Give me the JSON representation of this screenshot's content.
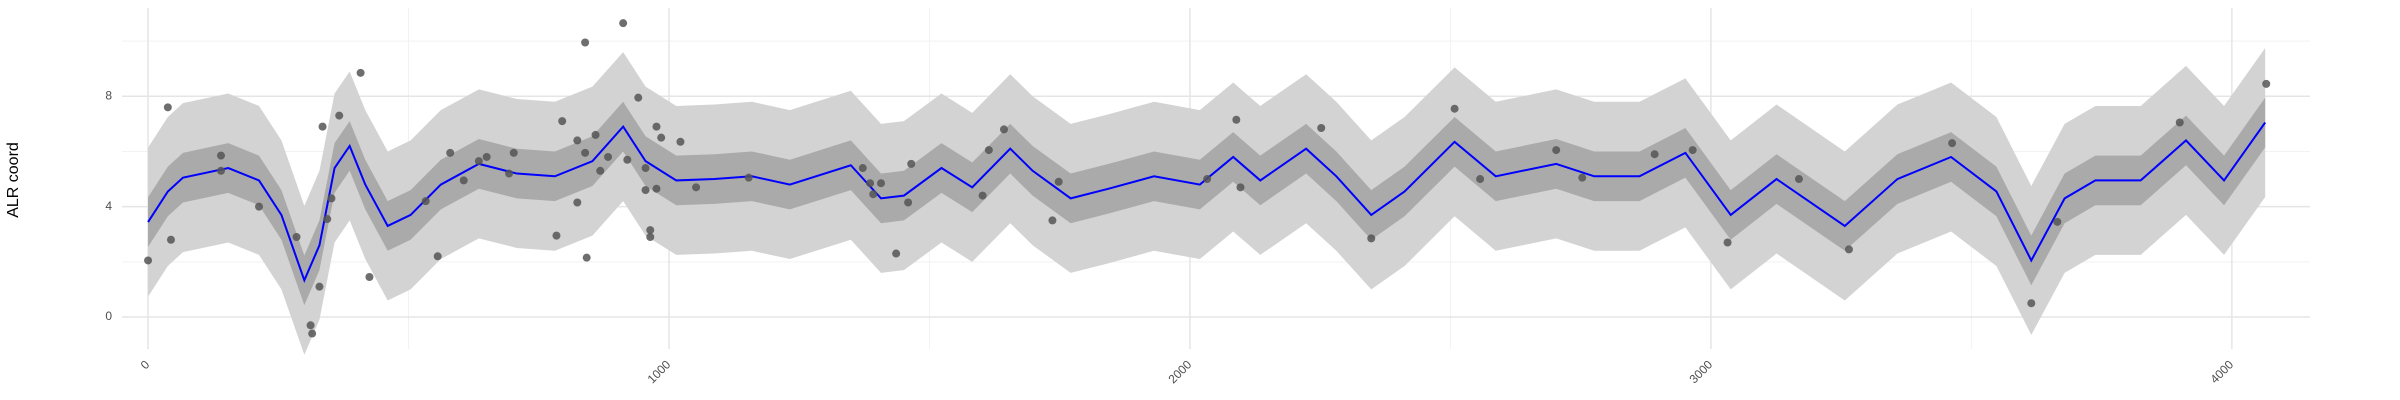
{
  "chart_data": {
    "type": "line",
    "y_label": "ALR coord",
    "xlim": [
      -50,
      4150
    ],
    "ylim": [
      -1.16,
      11.2
    ],
    "xticks": [
      0,
      1000,
      2000,
      3000,
      4000
    ],
    "yticks": [
      0,
      4,
      8
    ],
    "x_minor_ticks": [
      500,
      1500,
      2500,
      3500
    ],
    "y_minor_ticks": [
      2,
      6,
      10
    ],
    "grid": true,
    "x": [
      0,
      38,
      67,
      154,
      213,
      256,
      300,
      329,
      358,
      387,
      417,
      460,
      504,
      562,
      635,
      708,
      781,
      853,
      912,
      955,
      1014,
      1087,
      1159,
      1232,
      1349,
      1407,
      1451,
      1523,
      1582,
      1655,
      1698,
      1771,
      1844,
      1931,
      2019,
      2083,
      2135,
      2223,
      2281,
      2348,
      2412,
      2508,
      2587,
      2703,
      2776,
      2863,
      2951,
      3038,
      3126,
      3257,
      3358,
      3461,
      3548,
      3615,
      3679,
      3738,
      3825,
      3912,
      3985,
      4064
    ],
    "bands": [
      {
        "color": "#d3d3d3",
        "lower": [
          0.74,
          1.85,
          2.35,
          2.7,
          2.25,
          1.0,
          -1.37,
          -0.1,
          2.7,
          3.5,
          2.1,
          0.6,
          1.0,
          2.1,
          2.85,
          2.5,
          2.4,
          2.95,
          4.2,
          2.95,
          2.25,
          2.3,
          2.4,
          2.1,
          2.8,
          1.6,
          1.7,
          2.7,
          2.0,
          3.4,
          2.6,
          1.6,
          1.95,
          2.4,
          2.1,
          3.1,
          2.25,
          3.4,
          2.4,
          1.0,
          1.85,
          3.65,
          2.4,
          2.85,
          2.4,
          2.4,
          3.25,
          1.0,
          2.3,
          0.6,
          2.3,
          3.1,
          1.85,
          -0.65,
          1.6,
          2.25,
          2.25,
          3.7,
          2.25,
          4.35
        ],
        "upper": [
          6.14,
          7.25,
          7.75,
          8.1,
          7.65,
          6.4,
          4.03,
          5.3,
          8.1,
          8.9,
          7.5,
          6.0,
          6.4,
          7.5,
          8.25,
          7.9,
          7.8,
          8.35,
          9.6,
          8.35,
          7.65,
          7.7,
          7.8,
          7.5,
          8.2,
          7.0,
          7.1,
          8.1,
          7.4,
          8.8,
          8.0,
          7.0,
          7.35,
          7.8,
          7.5,
          8.5,
          7.65,
          8.8,
          7.8,
          6.4,
          7.25,
          9.05,
          7.8,
          8.25,
          7.8,
          7.8,
          8.65,
          6.4,
          7.7,
          6.0,
          7.7,
          8.5,
          7.25,
          4.75,
          7.0,
          7.65,
          7.65,
          9.1,
          7.65,
          9.75
        ]
      },
      {
        "color": "#aaaaaa",
        "lower": [
          2.54,
          3.65,
          4.15,
          4.5,
          4.05,
          2.8,
          0.43,
          1.7,
          4.5,
          5.3,
          3.9,
          2.4,
          2.8,
          3.9,
          4.65,
          4.3,
          4.2,
          4.75,
          6.0,
          4.75,
          4.05,
          4.1,
          4.2,
          3.9,
          4.6,
          3.4,
          3.5,
          4.5,
          3.8,
          5.2,
          4.4,
          3.4,
          3.75,
          4.2,
          3.9,
          4.9,
          4.05,
          5.2,
          4.2,
          2.8,
          3.65,
          5.45,
          4.2,
          4.65,
          4.2,
          4.2,
          5.05,
          2.8,
          4.1,
          2.4,
          4.1,
          4.9,
          3.65,
          1.15,
          3.4,
          4.05,
          4.05,
          5.5,
          4.05,
          6.15
        ],
        "upper": [
          4.34,
          5.45,
          5.95,
          6.3,
          5.85,
          4.6,
          2.23,
          3.5,
          6.3,
          7.1,
          5.7,
          4.2,
          4.6,
          5.7,
          6.45,
          6.1,
          6.0,
          6.55,
          7.8,
          6.55,
          5.85,
          5.9,
          6.0,
          5.7,
          6.4,
          5.2,
          5.3,
          6.3,
          5.6,
          7.0,
          6.2,
          5.2,
          5.55,
          6.0,
          5.7,
          6.7,
          5.85,
          7.0,
          6.0,
          4.6,
          5.45,
          7.25,
          6.0,
          6.45,
          6.0,
          6.0,
          6.85,
          4.6,
          5.9,
          4.2,
          5.9,
          6.7,
          5.45,
          2.95,
          5.2,
          5.85,
          5.85,
          7.3,
          5.85,
          7.95
        ]
      }
    ],
    "series": [
      {
        "color": "#0000ff",
        "values": [
          3.44,
          4.55,
          5.05,
          5.4,
          4.95,
          3.7,
          1.33,
          2.6,
          5.4,
          6.2,
          4.8,
          3.3,
          3.7,
          4.8,
          5.55,
          5.2,
          5.1,
          5.65,
          6.9,
          5.65,
          4.95,
          5.0,
          5.1,
          4.8,
          5.5,
          4.3,
          4.4,
          5.4,
          4.7,
          6.1,
          5.3,
          4.3,
          4.65,
          5.1,
          4.8,
          5.8,
          4.95,
          6.1,
          5.1,
          3.7,
          4.55,
          6.35,
          5.1,
          5.55,
          5.1,
          5.1,
          5.95,
          3.7,
          5.0,
          3.3,
          5.0,
          5.8,
          4.55,
          2.05,
          4.3,
          4.95,
          4.95,
          6.4,
          4.95,
          7.05
        ]
      }
    ],
    "points": {
      "color": "#555555",
      "x": [
        0,
        38,
        44,
        140,
        140,
        213,
        285,
        312,
        315,
        329,
        335,
        344,
        352,
        367,
        408,
        425,
        533,
        556,
        580,
        606,
        635,
        650,
        693,
        702,
        784,
        795,
        824,
        824,
        839,
        839,
        842,
        859,
        868,
        883,
        912,
        920,
        941,
        955,
        955,
        964,
        964,
        976,
        976,
        985,
        1022,
        1052,
        1153,
        1372,
        1386,
        1392,
        1407,
        1436,
        1459,
        1465,
        1602,
        1614,
        1643,
        1736,
        1748,
        2033,
        2089,
        2097,
        2252,
        2348,
        2508,
        2557,
        2703,
        2753,
        2892,
        2965,
        3032,
        3169,
        3265,
        3463,
        3615,
        3665,
        3900,
        4066
      ],
      "values": [
        2.05,
        7.6,
        2.8,
        5.85,
        5.3,
        4.0,
        2.9,
        -0.3,
        -0.6,
        1.1,
        6.9,
        3.55,
        4.3,
        7.3,
        8.85,
        1.45,
        4.2,
        2.2,
        5.95,
        4.95,
        5.65,
        5.8,
        5.2,
        5.95,
        2.95,
        7.1,
        6.4,
        4.15,
        9.95,
        5.95,
        2.15,
        6.6,
        5.3,
        5.8,
        10.65,
        5.7,
        7.95,
        5.4,
        4.6,
        3.15,
        2.9,
        6.9,
        4.65,
        6.5,
        6.35,
        4.7,
        5.05,
        5.4,
        4.85,
        4.45,
        4.85,
        2.3,
        4.15,
        5.55,
        4.4,
        6.05,
        6.8,
        3.5,
        4.9,
        5.0,
        7.15,
        4.7,
        6.85,
        2.85,
        7.55,
        5.0,
        6.05,
        5.05,
        5.9,
        6.05,
        2.7,
        5.0,
        2.45,
        6.3,
        0.5,
        3.45,
        7.05,
        8.45
      ]
    }
  }
}
